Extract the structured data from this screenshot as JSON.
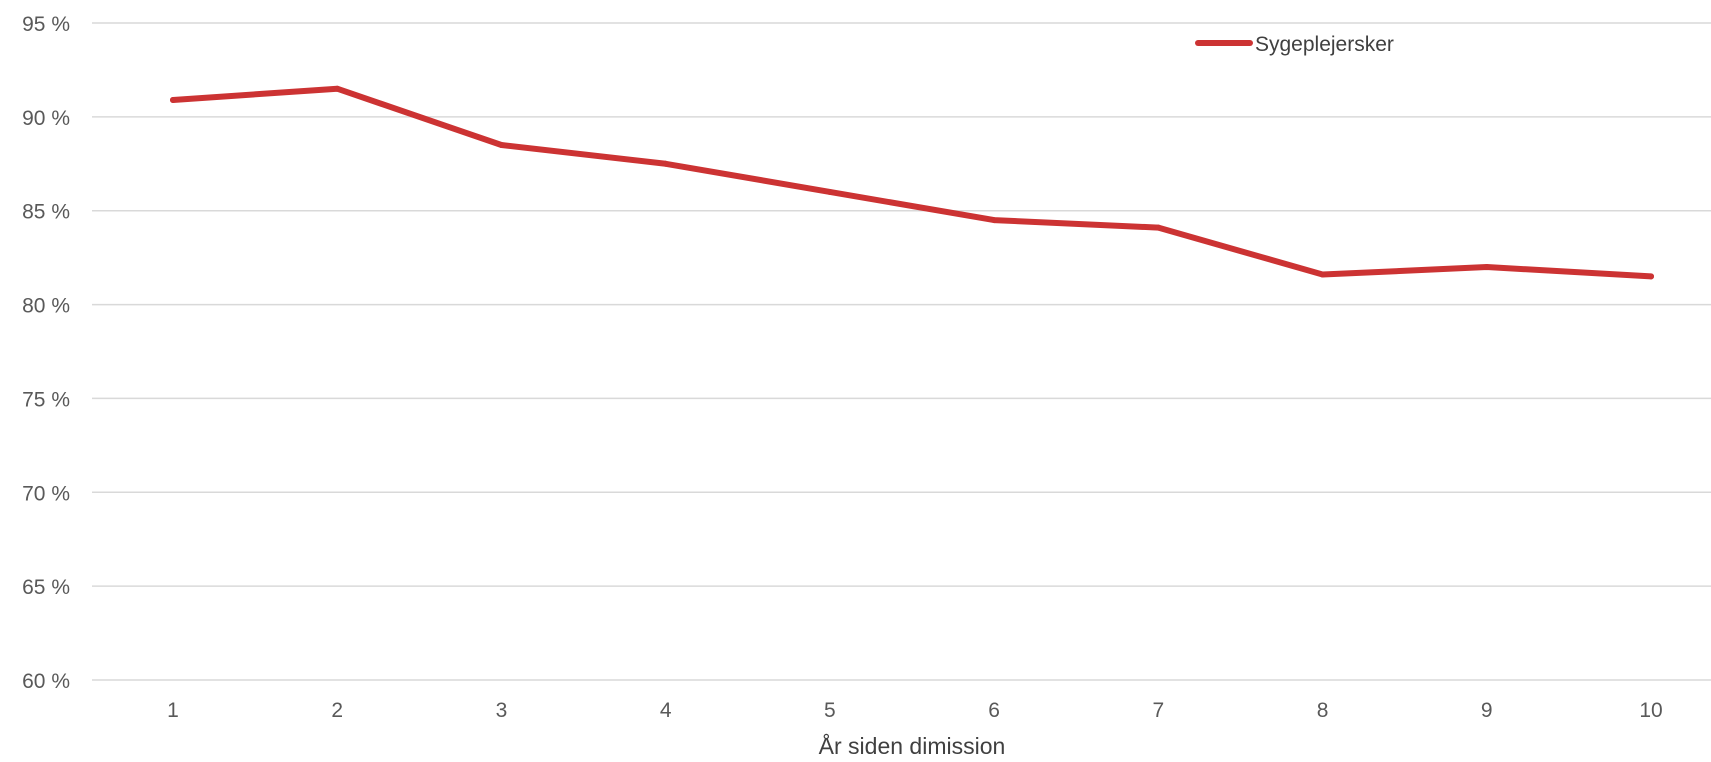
{
  "chart_data": {
    "type": "line",
    "title": "",
    "xlabel": "År siden dimission",
    "ylabel": "",
    "categories": [
      "1",
      "2",
      "3",
      "4",
      "5",
      "6",
      "7",
      "8",
      "9",
      "10"
    ],
    "y_ticks": [
      "60 %",
      "65 %",
      "70 %",
      "75 %",
      "80 %",
      "85 %",
      "90 %",
      "95 %"
    ],
    "ylim": [
      60,
      95
    ],
    "grid": true,
    "legend_position": "top-right",
    "series": [
      {
        "name": "Sygeplejersker",
        "color": "#cc3333",
        "values": [
          90.9,
          91.5,
          88.5,
          87.5,
          86.0,
          84.5,
          84.1,
          81.6,
          82.0,
          81.5
        ]
      }
    ]
  }
}
